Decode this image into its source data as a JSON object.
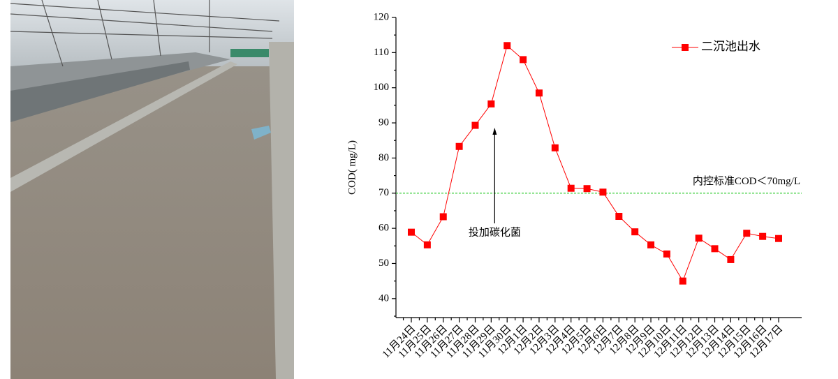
{
  "chart_data": {
    "type": "line",
    "ylabel": "COD( mg/L)",
    "categories": [
      "11月24日",
      "11月25日",
      "11月26日",
      "11月27日",
      "11月28日",
      "11月29日",
      "11月30日",
      "12月1日",
      "12月2日",
      "12月3日",
      "12月4日",
      "12月5日",
      "12月6日",
      "12月7日",
      "12月8日",
      "12月9日",
      "12月10日",
      "12月11日",
      "12月12日",
      "12月13日",
      "12月14日",
      "12月15日",
      "12月16日",
      "12月17日"
    ],
    "series": [
      {
        "name": "二沉池出水",
        "color": "#ff0000",
        "values": [
          58.9,
          55.3,
          63.3,
          83.3,
          89.3,
          95.4,
          112,
          108,
          98.5,
          82.9,
          71.4,
          71.3,
          70.3,
          63.4,
          59,
          55.3,
          52.7,
          45,
          57.2,
          54.2,
          51.1,
          58.6,
          57.7,
          57.1
        ]
      }
    ],
    "ylim": [
      35,
      120
    ],
    "yticks": [
      40,
      50,
      60,
      70,
      80,
      90,
      100,
      110,
      120
    ],
    "reference_line": {
      "value": 70,
      "label": "内控标准COD＜70mg/L",
      "color": "#33cc33"
    },
    "annotation": {
      "text": "投加碳化菌",
      "category_index": 5
    },
    "legend": "upper right"
  }
}
